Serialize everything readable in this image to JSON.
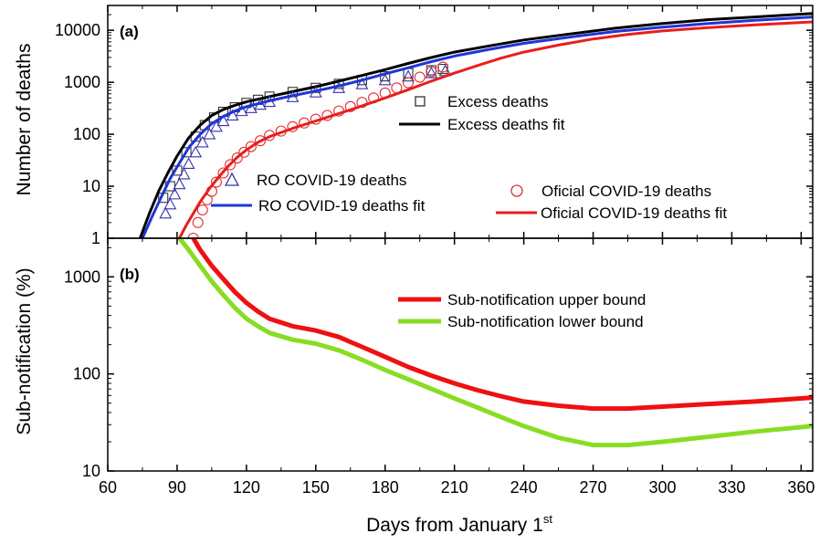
{
  "chart_data": [
    {
      "panel": "(a)",
      "type": "scatter",
      "ylabel": "Number of deaths",
      "yscale": "log",
      "xlim": [
        60,
        365
      ],
      "ylim": [
        1,
        30000
      ],
      "y_ticks": [
        1,
        10,
        100,
        1000,
        10000
      ],
      "y_tick_labels": [
        "1",
        "10",
        "100",
        "1000",
        "10000"
      ],
      "legend": [
        "Excess deaths",
        "Excess deaths fit",
        "RO COVID-19 deaths",
        "RO COVID-19 deaths fit",
        "Oficial COVID-19 deaths",
        "Oficial COVID-19 deaths fit"
      ],
      "series": [
        {
          "name": "Excess deaths",
          "kind": "markers",
          "marker": "square",
          "color": "#333333",
          "x": [
            84,
            87,
            90,
            94,
            98,
            102,
            106,
            110,
            115,
            120,
            125,
            130,
            140,
            150,
            160,
            170,
            180,
            190,
            200,
            205
          ],
          "y": [
            6,
            10,
            20,
            45,
            90,
            150,
            210,
            270,
            330,
            400,
            460,
            530,
            650,
            780,
            930,
            1100,
            1300,
            1500,
            1700,
            1800
          ]
        },
        {
          "name": "Excess deaths fit",
          "kind": "line",
          "color": "#000000",
          "x": [
            74,
            78,
            82,
            86,
            90,
            95,
            100,
            105,
            110,
            115,
            120,
            130,
            140,
            150,
            160,
            170,
            180,
            190,
            200,
            210,
            225,
            240,
            260,
            280,
            300,
            320,
            340,
            365
          ],
          "y": [
            1,
            3,
            8,
            18,
            38,
            85,
            150,
            230,
            300,
            360,
            420,
            530,
            660,
            820,
            1050,
            1350,
            1750,
            2300,
            3000,
            3800,
            5000,
            6500,
            8500,
            11000,
            13500,
            16000,
            18000,
            21000
          ]
        },
        {
          "name": "RO COVID-19 deaths",
          "kind": "markers",
          "marker": "triangle",
          "color": "#3333aa",
          "x": [
            85,
            87,
            89,
            91,
            93,
            95,
            98,
            101,
            104,
            107,
            110,
            114,
            118,
            122,
            126,
            130,
            140,
            150,
            160,
            170,
            180,
            190,
            200,
            206
          ],
          "y": [
            3,
            4.5,
            7,
            11,
            17,
            27,
            45,
            70,
            100,
            140,
            180,
            230,
            280,
            320,
            370,
            420,
            520,
            640,
            780,
            920,
            1100,
            1300,
            1500,
            1650
          ]
        },
        {
          "name": "RO COVID-19 deaths fit",
          "kind": "line",
          "color": "#1f35d8",
          "x": [
            75,
            79,
            83,
            87,
            91,
            95,
            100,
            105,
            110,
            115,
            120,
            130,
            140,
            150,
            160,
            170,
            180,
            190,
            200,
            210,
            225,
            240,
            260,
            280,
            300,
            320,
            340,
            365
          ],
          "y": [
            1,
            2.5,
            6,
            14,
            28,
            55,
            100,
            160,
            220,
            280,
            340,
            440,
            550,
            680,
            850,
            1100,
            1450,
            1900,
            2500,
            3200,
            4300,
            5600,
            7400,
            9500,
            11500,
            13500,
            15500,
            18000
          ]
        },
        {
          "name": "Oficial COVID-19 deaths",
          "kind": "markers",
          "marker": "circle",
          "color": "#e03030",
          "x": [
            97,
            99,
            101,
            103,
            105,
            107,
            110,
            113,
            116,
            119,
            122,
            126,
            130,
            135,
            140,
            145,
            150,
            155,
            160,
            165,
            170,
            175,
            180,
            185,
            190,
            195,
            200,
            205
          ],
          "y": [
            1,
            2,
            3.5,
            5.5,
            8,
            12,
            18,
            26,
            35,
            45,
            58,
            75,
            95,
            115,
            140,
            165,
            195,
            230,
            280,
            340,
            410,
            500,
            620,
            780,
            980,
            1250,
            1600,
            1950
          ]
        },
        {
          "name": "Oficial COVID-19 deaths fit",
          "kind": "line",
          "color": "#e81e1e",
          "x": [
            91,
            94,
            97,
            100,
            104,
            108,
            112,
            116,
            120,
            125,
            130,
            140,
            150,
            160,
            170,
            180,
            190,
            200,
            210,
            220,
            230,
            240,
            255,
            270,
            285,
            300,
            320,
            340,
            365
          ],
          "y": [
            1,
            1.8,
            3,
            5,
            9,
            15,
            24,
            36,
            50,
            70,
            90,
            130,
            180,
            250,
            350,
            500,
            720,
            1050,
            1500,
            2100,
            2900,
            3800,
            5200,
            6800,
            8300,
            9700,
            11300,
            12700,
            14500
          ]
        }
      ]
    },
    {
      "panel": "(b)",
      "type": "line",
      "xlabel": "Days from January 1",
      "xlabel_sup": "st",
      "ylabel": "Sub-notification (%)",
      "yscale": "log",
      "xlim": [
        60,
        365
      ],
      "ylim": [
        10,
        2500
      ],
      "x_ticks": [
        60,
        90,
        120,
        150,
        180,
        210,
        240,
        270,
        300,
        330,
        360
      ],
      "x_tick_labels": [
        "60",
        "90",
        "120",
        "150",
        "180",
        "210",
        "240",
        "270",
        "300",
        "330",
        "360"
      ],
      "y_ticks": [
        10,
        100,
        1000
      ],
      "y_tick_labels": [
        "10",
        "100",
        "1000"
      ],
      "legend": [
        "Sub-notification upper bound",
        "Sub-notification lower bound"
      ],
      "series": [
        {
          "name": "Sub-notification upper bound",
          "color": "#ee1111",
          "x": [
            97,
            100,
            105,
            110,
            115,
            120,
            125,
            130,
            140,
            150,
            160,
            170,
            180,
            190,
            200,
            210,
            220,
            230,
            240,
            255,
            270,
            285,
            300,
            320,
            340,
            365
          ],
          "y": [
            2500,
            1900,
            1300,
            950,
            700,
            540,
            440,
            370,
            310,
            280,
            240,
            190,
            150,
            118,
            96,
            80,
            68,
            59,
            52,
            47,
            44,
            44,
            46,
            49,
            52,
            57
          ]
        },
        {
          "name": "Sub-notification lower bound",
          "color": "#88dd22",
          "x": [
            91,
            95,
            100,
            105,
            110,
            115,
            120,
            125,
            130,
            140,
            150,
            160,
            170,
            180,
            190,
            200,
            210,
            220,
            230,
            240,
            255,
            270,
            285,
            300,
            320,
            340,
            365
          ],
          "y": [
            2500,
            1900,
            1300,
            900,
            650,
            480,
            370,
            310,
            265,
            225,
            205,
            175,
            140,
            110,
            88,
            70,
            56,
            45,
            36,
            29,
            22,
            18.5,
            18.5,
            20,
            22.5,
            25.5,
            29
          ]
        }
      ]
    }
  ]
}
